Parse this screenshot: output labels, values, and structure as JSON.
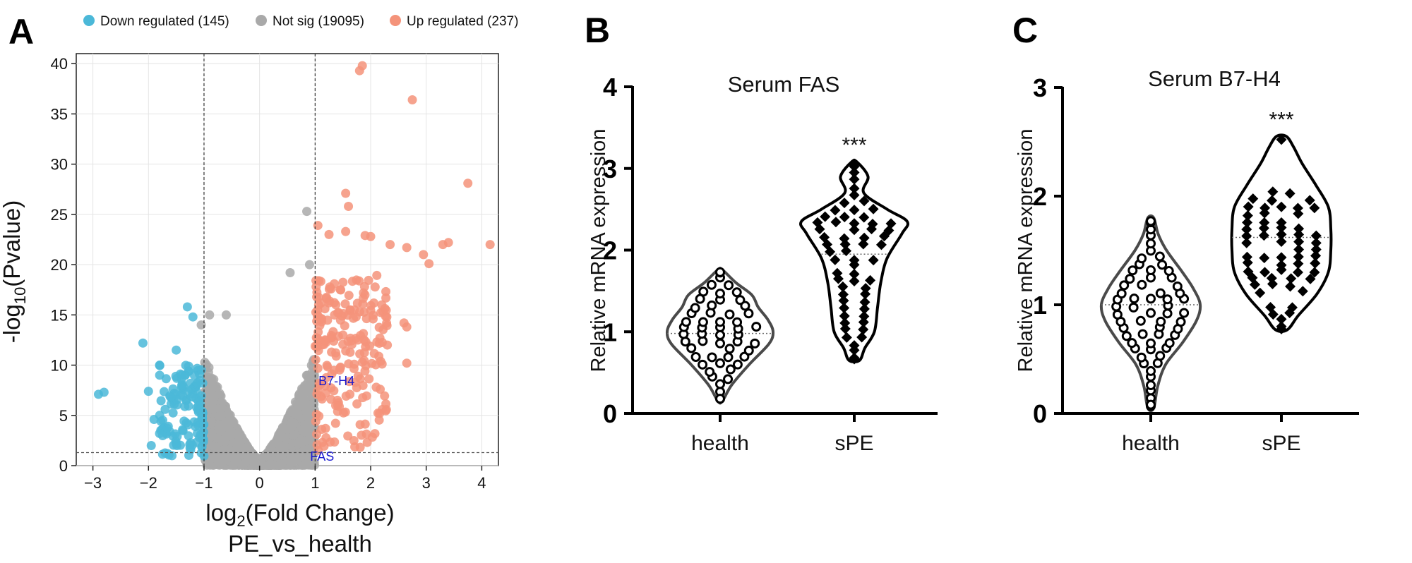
{
  "panel_letters": {
    "a": "A",
    "b": "B",
    "c": "C"
  },
  "colors": {
    "down": "#4bb8d8",
    "notsig": "#a9a9a9",
    "up": "#f4937a",
    "gene_label": "#1a1ad0",
    "violin_stroke": "#4a4a4a"
  },
  "chart_data": [
    {
      "id": "A",
      "type": "scatter",
      "subtype": "volcano",
      "title": "",
      "xlabel_main": "log",
      "xlabel_sub": "2",
      "xlabel_rest": "(Fold Change)",
      "xlabel_line2": "PE_vs_health",
      "ylabel_pre": "-log",
      "ylabel_sub": "10",
      "ylabel_rest": "(Pvalue)",
      "xlim": [
        -3.3,
        4.3
      ],
      "ylim": [
        0,
        41
      ],
      "xticks": [
        -3,
        -2,
        -1,
        0,
        1,
        2,
        3,
        4
      ],
      "yticks": [
        0,
        5,
        10,
        15,
        20,
        25,
        30,
        35,
        40
      ],
      "grid": true,
      "thresholds": {
        "fc": [
          -1,
          1
        ],
        "p": 1.3
      },
      "legend_position": "top",
      "legend": [
        {
          "label": "Down regulated (145)",
          "series": "down"
        },
        {
          "label": "Not sig (19095)",
          "series": "notsig"
        },
        {
          "label": "Up regulated (237)",
          "series": "up"
        }
      ],
      "annotations": [
        {
          "text": "B7-H4",
          "x": 1.06,
          "y": 8
        },
        {
          "text": "FAS",
          "x": 0.91,
          "y": 0.5
        }
      ],
      "highlighted_points": {
        "down": [
          [
            -2.9,
            7.1
          ],
          [
            -2.8,
            7.3
          ],
          [
            -2.1,
            12.2
          ],
          [
            -2.0,
            7.4
          ],
          [
            -1.9,
            4.6
          ],
          [
            -1.8,
            3.2
          ],
          [
            -1.95,
            2.0
          ],
          [
            -1.7,
            5.6
          ],
          [
            -1.6,
            6.8
          ],
          [
            -1.5,
            11.5
          ],
          [
            -1.3,
            15.8
          ],
          [
            -1.2,
            14.8
          ],
          [
            -1.4,
            9.0
          ],
          [
            -1.5,
            2.2
          ],
          [
            -1.8,
            10.0
          ]
        ],
        "notsig": [
          [
            0.85,
            25.3
          ],
          [
            0.55,
            19.2
          ],
          [
            0.9,
            20.0
          ],
          [
            -0.9,
            15.0
          ],
          [
            -0.6,
            15.0
          ],
          [
            -1.05,
            14.0
          ]
        ],
        "up": [
          [
            1.85,
            39.8
          ],
          [
            1.8,
            39.3
          ],
          [
            2.75,
            36.4
          ],
          [
            3.75,
            28.1
          ],
          [
            1.55,
            27.1
          ],
          [
            1.6,
            25.8
          ],
          [
            1.05,
            23.9
          ],
          [
            1.25,
            23.0
          ],
          [
            1.55,
            23.3
          ],
          [
            1.9,
            22.9
          ],
          [
            2.0,
            22.8
          ],
          [
            2.35,
            22.0
          ],
          [
            2.65,
            21.7
          ],
          [
            3.3,
            22.0
          ],
          [
            3.4,
            22.2
          ],
          [
            4.15,
            22.0
          ],
          [
            2.95,
            21.0
          ],
          [
            3.05,
            20.1
          ],
          [
            2.2,
            16.0
          ],
          [
            2.6,
            14.2
          ],
          [
            2.65,
            13.8
          ],
          [
            2.65,
            10.2
          ],
          [
            1.5,
            13.0
          ],
          [
            2.3,
            12.0
          ],
          [
            1.85,
            10.3
          ],
          [
            2.1,
            7.8
          ]
        ]
      },
      "random_points": {
        "down_bulk": {
          "count": 130,
          "x_range": [
            -1.8,
            -1.0
          ],
          "y_range": [
            0.5,
            10
          ]
        },
        "notsig_bulk": {
          "count": 2400,
          "x_range": [
            -1.0,
            1.0
          ],
          "y_range": [
            0,
            11
          ]
        },
        "up_bulk": {
          "count": 211,
          "x_range": [
            1.0,
            2.3
          ],
          "y_range": [
            1.5,
            19
          ]
        }
      }
    },
    {
      "id": "B",
      "type": "violin",
      "title": "Serum FAS",
      "ylabel": "Relative mRNA expression",
      "categories": [
        "health",
        "sPE"
      ],
      "ylim": [
        0,
        4
      ],
      "yticks": [
        0,
        1,
        2,
        3,
        4
      ],
      "significance": [
        {
          "group": "sPE",
          "text": "***"
        }
      ],
      "series": [
        {
          "name": "health",
          "marker": "circle",
          "n": 60,
          "min": 0.15,
          "max": 1.76,
          "median": 0.98,
          "violin_profile": [
            [
              0.15,
              0.04
            ],
            [
              0.35,
              0.22
            ],
            [
              0.6,
              0.55
            ],
            [
              0.85,
              0.92
            ],
            [
              1.0,
              1.0
            ],
            [
              1.15,
              0.9
            ],
            [
              1.3,
              0.72
            ],
            [
              1.45,
              0.6
            ],
            [
              1.6,
              0.3
            ],
            [
              1.76,
              0.04
            ]
          ]
        },
        {
          "name": "sPE",
          "marker": "diamond",
          "n": 60,
          "min": 0.65,
          "max": 3.08,
          "median": 1.95,
          "violin_profile": [
            [
              0.65,
              0.1
            ],
            [
              0.8,
              0.2
            ],
            [
              1.0,
              0.38
            ],
            [
              1.3,
              0.44
            ],
            [
              1.6,
              0.5
            ],
            [
              1.9,
              0.62
            ],
            [
              2.2,
              0.9
            ],
            [
              2.35,
              1.0
            ],
            [
              2.5,
              0.62
            ],
            [
              2.7,
              0.18
            ],
            [
              2.9,
              0.26
            ],
            [
              3.08,
              0.05
            ]
          ]
        }
      ]
    },
    {
      "id": "C",
      "type": "violin",
      "title": "Serum B7-H4",
      "ylabel": "Relative mRNA expression",
      "categories": [
        "health",
        "sPE"
      ],
      "ylim": [
        0,
        3
      ],
      "yticks": [
        0,
        1,
        2,
        3
      ],
      "significance": [
        {
          "group": "sPE",
          "text": "***"
        }
      ],
      "series": [
        {
          "name": "health",
          "marker": "circle",
          "n": 60,
          "min": 0.05,
          "max": 1.8,
          "median": 1.0,
          "violin_profile": [
            [
              0.05,
              0.06
            ],
            [
              0.25,
              0.14
            ],
            [
              0.45,
              0.3
            ],
            [
              0.65,
              0.64
            ],
            [
              0.85,
              0.92
            ],
            [
              1.0,
              1.0
            ],
            [
              1.15,
              0.86
            ],
            [
              1.3,
              0.64
            ],
            [
              1.5,
              0.32
            ],
            [
              1.65,
              0.15
            ],
            [
              1.8,
              0.06
            ]
          ]
        },
        {
          "name": "sPE",
          "marker": "diamond",
          "n": 60,
          "min": 0.77,
          "max": 2.55,
          "median": 1.62,
          "violin_profile": [
            [
              0.77,
              0.12
            ],
            [
              0.9,
              0.34
            ],
            [
              1.1,
              0.72
            ],
            [
              1.3,
              0.95
            ],
            [
              1.5,
              1.0
            ],
            [
              1.7,
              1.0
            ],
            [
              1.9,
              0.95
            ],
            [
              2.1,
              0.7
            ],
            [
              2.3,
              0.42
            ],
            [
              2.45,
              0.25
            ],
            [
              2.55,
              0.1
            ]
          ]
        }
      ]
    }
  ]
}
